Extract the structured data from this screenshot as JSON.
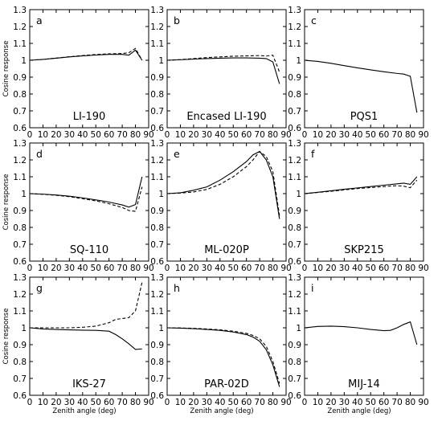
{
  "chart_data": [
    {
      "type": "line",
      "panel_label": "a",
      "title": "LI-190",
      "xlabel": "",
      "ylabel": "Cosine response",
      "xlim": [
        0,
        90
      ],
      "ylim": [
        0.6,
        1.3
      ],
      "x_ticks": [
        "0",
        "10",
        "20",
        "30",
        "40",
        "50",
        "60",
        "70",
        "80",
        "90"
      ],
      "y_ticks": [
        "0.6",
        "0.7",
        "0.8",
        "0.9",
        "1",
        "1.1",
        "1.2",
        "1.3"
      ],
      "series": [
        {
          "style": "solid",
          "x": [
            0,
            10,
            20,
            30,
            40,
            50,
            60,
            70,
            75,
            80,
            85
          ],
          "y": [
            1.0,
            1.005,
            1.012,
            1.02,
            1.026,
            1.031,
            1.035,
            1.035,
            1.03,
            1.06,
            1.0
          ]
        },
        {
          "style": "dashed",
          "x": [
            0,
            10,
            20,
            30,
            40,
            50,
            60,
            70,
            75,
            80,
            85
          ],
          "y": [
            1.0,
            1.005,
            1.013,
            1.021,
            1.028,
            1.034,
            1.038,
            1.04,
            1.045,
            1.07,
            1.0
          ]
        }
      ]
    },
    {
      "type": "line",
      "panel_label": "b",
      "title": "Encased LI-190",
      "xlabel": "",
      "ylabel": "",
      "xlim": [
        0,
        90
      ],
      "ylim": [
        0.6,
        1.3
      ],
      "x_ticks": [
        "0",
        "10",
        "20",
        "30",
        "40",
        "50",
        "60",
        "70",
        "80",
        "90"
      ],
      "y_ticks": [
        "0.6",
        "0.7",
        "0.8",
        "0.9",
        "1",
        "1.1",
        "1.2",
        "1.3"
      ],
      "series": [
        {
          "style": "solid",
          "x": [
            0,
            10,
            20,
            30,
            40,
            50,
            60,
            70,
            75,
            80,
            85
          ],
          "y": [
            1.0,
            1.003,
            1.007,
            1.01,
            1.012,
            1.014,
            1.014,
            1.012,
            1.01,
            0.99,
            0.86
          ]
        },
        {
          "style": "dashed",
          "x": [
            0,
            10,
            20,
            30,
            40,
            50,
            60,
            70,
            75,
            80,
            85
          ],
          "y": [
            1.0,
            1.004,
            1.01,
            1.016,
            1.02,
            1.024,
            1.026,
            1.028,
            1.025,
            1.03,
            0.93
          ]
        }
      ]
    },
    {
      "type": "line",
      "panel_label": "c",
      "title": "PQS1",
      "xlabel": "",
      "ylabel": "",
      "xlim": [
        0,
        90
      ],
      "ylim": [
        0.6,
        1.3
      ],
      "x_ticks": [
        "0",
        "10",
        "20",
        "30",
        "40",
        "50",
        "60",
        "70",
        "80",
        "90"
      ],
      "y_ticks": [
        "0.6",
        "0.7",
        "0.8",
        "0.9",
        "1",
        "1.1",
        "1.2",
        "1.3"
      ],
      "series": [
        {
          "style": "solid",
          "x": [
            0,
            10,
            20,
            30,
            40,
            50,
            60,
            70,
            75,
            80,
            85
          ],
          "y": [
            1.0,
            0.993,
            0.982,
            0.968,
            0.955,
            0.943,
            0.932,
            0.922,
            0.918,
            0.905,
            0.69
          ]
        }
      ]
    },
    {
      "type": "line",
      "panel_label": "d",
      "title": "SQ-110",
      "xlabel": "",
      "ylabel": "Cosine response",
      "xlim": [
        0,
        90
      ],
      "ylim": [
        0.6,
        1.3
      ],
      "x_ticks": [
        "0",
        "10",
        "20",
        "30",
        "40",
        "50",
        "60",
        "70",
        "80",
        "90"
      ],
      "y_ticks": [
        "0.6",
        "0.7",
        "0.8",
        "0.9",
        "1",
        "1.1",
        "1.2",
        "1.3"
      ],
      "series": [
        {
          "style": "solid",
          "x": [
            0,
            10,
            20,
            30,
            40,
            50,
            60,
            70,
            75,
            80,
            85
          ],
          "y": [
            1.0,
            0.997,
            0.992,
            0.985,
            0.975,
            0.963,
            0.95,
            0.933,
            0.92,
            0.935,
            1.1
          ]
        },
        {
          "style": "dashed",
          "x": [
            0,
            10,
            20,
            30,
            40,
            50,
            60,
            70,
            75,
            80,
            85
          ],
          "y": [
            1.0,
            0.996,
            0.99,
            0.982,
            0.97,
            0.957,
            0.94,
            0.918,
            0.9,
            0.895,
            1.04
          ]
        }
      ]
    },
    {
      "type": "line",
      "panel_label": "e",
      "title": "ML-020P",
      "xlabel": "",
      "ylabel": "",
      "xlim": [
        0,
        90
      ],
      "ylim": [
        0.6,
        1.3
      ],
      "x_ticks": [
        "0",
        "10",
        "20",
        "30",
        "40",
        "50",
        "60",
        "70",
        "80",
        "90"
      ],
      "y_ticks": [
        "0.6",
        "0.7",
        "0.8",
        "0.9",
        "1",
        "1.1",
        "1.2",
        "1.3"
      ],
      "series": [
        {
          "style": "solid",
          "x": [
            0,
            10,
            20,
            30,
            40,
            50,
            60,
            65,
            70,
            75,
            80,
            85
          ],
          "y": [
            1.0,
            1.005,
            1.02,
            1.04,
            1.08,
            1.13,
            1.19,
            1.23,
            1.25,
            1.2,
            1.1,
            0.85
          ]
        },
        {
          "style": "dashed",
          "x": [
            0,
            10,
            20,
            30,
            40,
            50,
            60,
            65,
            70,
            75,
            80,
            85
          ],
          "y": [
            1.0,
            1.003,
            1.01,
            1.025,
            1.055,
            1.1,
            1.16,
            1.2,
            1.25,
            1.22,
            1.13,
            0.87
          ]
        }
      ]
    },
    {
      "type": "line",
      "panel_label": "f",
      "title": "SKP215",
      "xlabel": "",
      "ylabel": "",
      "xlim": [
        0,
        90
      ],
      "ylim": [
        0.6,
        1.3
      ],
      "x_ticks": [
        "0",
        "10",
        "20",
        "30",
        "40",
        "50",
        "60",
        "70",
        "80",
        "90"
      ],
      "y_ticks": [
        "0.6",
        "0.7",
        "0.8",
        "0.9",
        "1",
        "1.1",
        "1.2",
        "1.3"
      ],
      "series": [
        {
          "style": "solid",
          "x": [
            0,
            10,
            20,
            30,
            40,
            50,
            60,
            70,
            75,
            80,
            85
          ],
          "y": [
            1.0,
            1.008,
            1.017,
            1.026,
            1.034,
            1.042,
            1.05,
            1.058,
            1.062,
            1.055,
            1.1
          ]
        },
        {
          "style": "dashed",
          "x": [
            0,
            10,
            20,
            30,
            40,
            50,
            60,
            70,
            75,
            80,
            85
          ],
          "y": [
            1.0,
            1.007,
            1.014,
            1.022,
            1.03,
            1.036,
            1.042,
            1.047,
            1.044,
            1.035,
            1.08
          ]
        }
      ]
    },
    {
      "type": "line",
      "panel_label": "g",
      "title": "IKS-27",
      "xlabel": "Zenith angle (deg)",
      "ylabel": "Cosine response",
      "xlim": [
        0,
        90
      ],
      "ylim": [
        0.6,
        1.3
      ],
      "x_ticks": [
        "0",
        "10",
        "20",
        "30",
        "40",
        "50",
        "60",
        "70",
        "80",
        "90"
      ],
      "y_ticks": [
        "0.6",
        "0.7",
        "0.8",
        "0.9",
        "1",
        "1.1",
        "1.2",
        "1.3"
      ],
      "series": [
        {
          "style": "solid",
          "x": [
            0,
            10,
            20,
            30,
            40,
            50,
            60,
            65,
            70,
            75,
            80,
            85
          ],
          "y": [
            1.0,
            0.993,
            0.99,
            0.988,
            0.986,
            0.985,
            0.98,
            0.96,
            0.935,
            0.905,
            0.872,
            0.875
          ]
        },
        {
          "style": "dashed",
          "x": [
            0,
            10,
            20,
            30,
            40,
            50,
            60,
            65,
            70,
            75,
            80,
            85
          ],
          "y": [
            1.0,
            1.0,
            1.0,
            1.0,
            1.003,
            1.01,
            1.03,
            1.05,
            1.055,
            1.06,
            1.1,
            1.27
          ]
        }
      ]
    },
    {
      "type": "line",
      "panel_label": "h",
      "title": "PAR-02D",
      "xlabel": "Zenith angle (deg)",
      "ylabel": "",
      "xlim": [
        0,
        90
      ],
      "ylim": [
        0.6,
        1.3
      ],
      "x_ticks": [
        "0",
        "10",
        "20",
        "30",
        "40",
        "50",
        "60",
        "70",
        "80",
        "90"
      ],
      "y_ticks": [
        "0.6",
        "0.7",
        "0.8",
        "0.9",
        "1",
        "1.1",
        "1.2",
        "1.3"
      ],
      "series": [
        {
          "style": "solid",
          "x": [
            0,
            10,
            20,
            30,
            40,
            50,
            60,
            65,
            70,
            75,
            80,
            85
          ],
          "y": [
            1.0,
            0.998,
            0.995,
            0.99,
            0.985,
            0.975,
            0.96,
            0.945,
            0.92,
            0.87,
            0.78,
            0.65
          ]
        },
        {
          "style": "dashed",
          "x": [
            0,
            10,
            20,
            30,
            40,
            50,
            60,
            65,
            70,
            75,
            80,
            85
          ],
          "y": [
            1.0,
            0.999,
            0.997,
            0.993,
            0.988,
            0.98,
            0.967,
            0.955,
            0.935,
            0.89,
            0.8,
            0.67
          ]
        }
      ]
    },
    {
      "type": "line",
      "panel_label": "i",
      "title": "MIJ-14",
      "xlabel": "Zenith angle (deg)",
      "ylabel": "",
      "xlim": [
        0,
        90
      ],
      "ylim": [
        0.6,
        1.3
      ],
      "x_ticks": [
        "0",
        "10",
        "20",
        "30",
        "40",
        "50",
        "60",
        "70",
        "80",
        "90"
      ],
      "y_ticks": [
        "0.6",
        "0.7",
        "0.8",
        "0.9",
        "1",
        "1.1",
        "1.2",
        "1.3"
      ],
      "series": [
        {
          "style": "solid",
          "x": [
            0,
            10,
            20,
            30,
            40,
            50,
            60,
            65,
            70,
            75,
            80,
            85
          ],
          "y": [
            1.0,
            1.008,
            1.01,
            1.007,
            1.0,
            0.99,
            0.983,
            0.985,
            1.0,
            1.02,
            1.035,
            0.9
          ]
        }
      ]
    }
  ]
}
